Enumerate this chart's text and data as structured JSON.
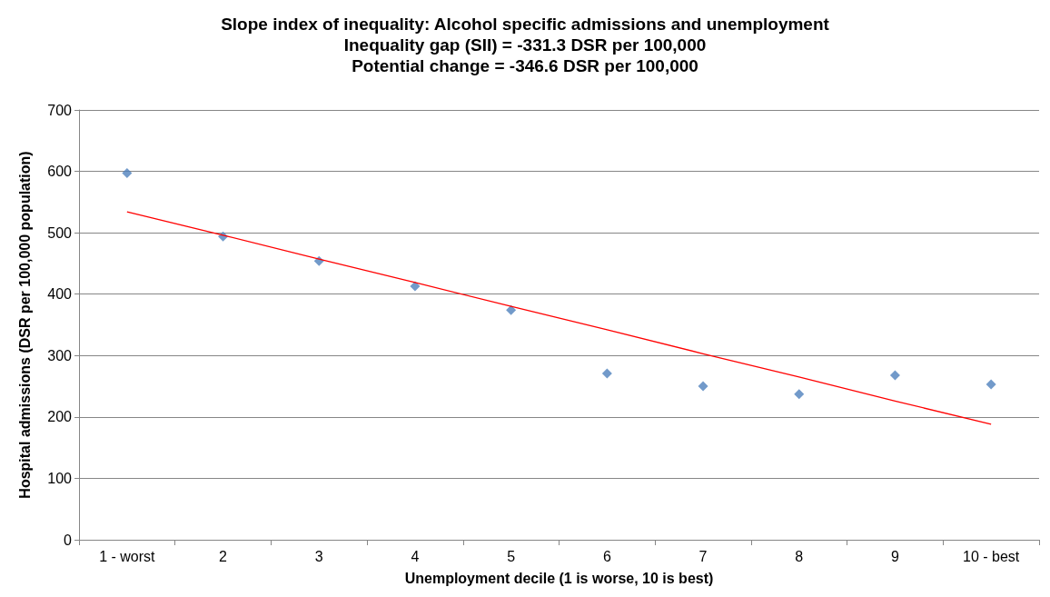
{
  "chart_data": {
    "type": "scatter",
    "title": "Slope index of inequality: Alcohol specific admissions and unemployment",
    "subtitle": "Inequality gap (SII) = -331.3 DSR per 100,000\nPotential change = -346.6 DSR per 100,000",
    "xlabel": "Unemployment decile (1 is worse, 10 is best)",
    "ylabel": "Hospital admissions (DSR per 100,000 population)",
    "categories": [
      "1 - worst",
      "2",
      "3",
      "4",
      "5",
      "6",
      "7",
      "8",
      "9",
      "10 - best"
    ],
    "ylim": [
      0,
      700
    ],
    "yticks": [
      0,
      100,
      200,
      300,
      400,
      500,
      600,
      700
    ],
    "grid": "y",
    "series": [
      {
        "color": "#4f81bd",
        "marker": "diamond",
        "values": [
          597,
          494,
          454,
          413,
          374,
          271,
          250,
          237,
          268,
          253
        ]
      },
      {
        "type": "line",
        "color": "#ff0000",
        "marker": "none",
        "line_style": "solid",
        "values": [
          534,
          496,
          457,
          419,
          380,
          342,
          303,
          265,
          226,
          188
        ]
      }
    ]
  }
}
